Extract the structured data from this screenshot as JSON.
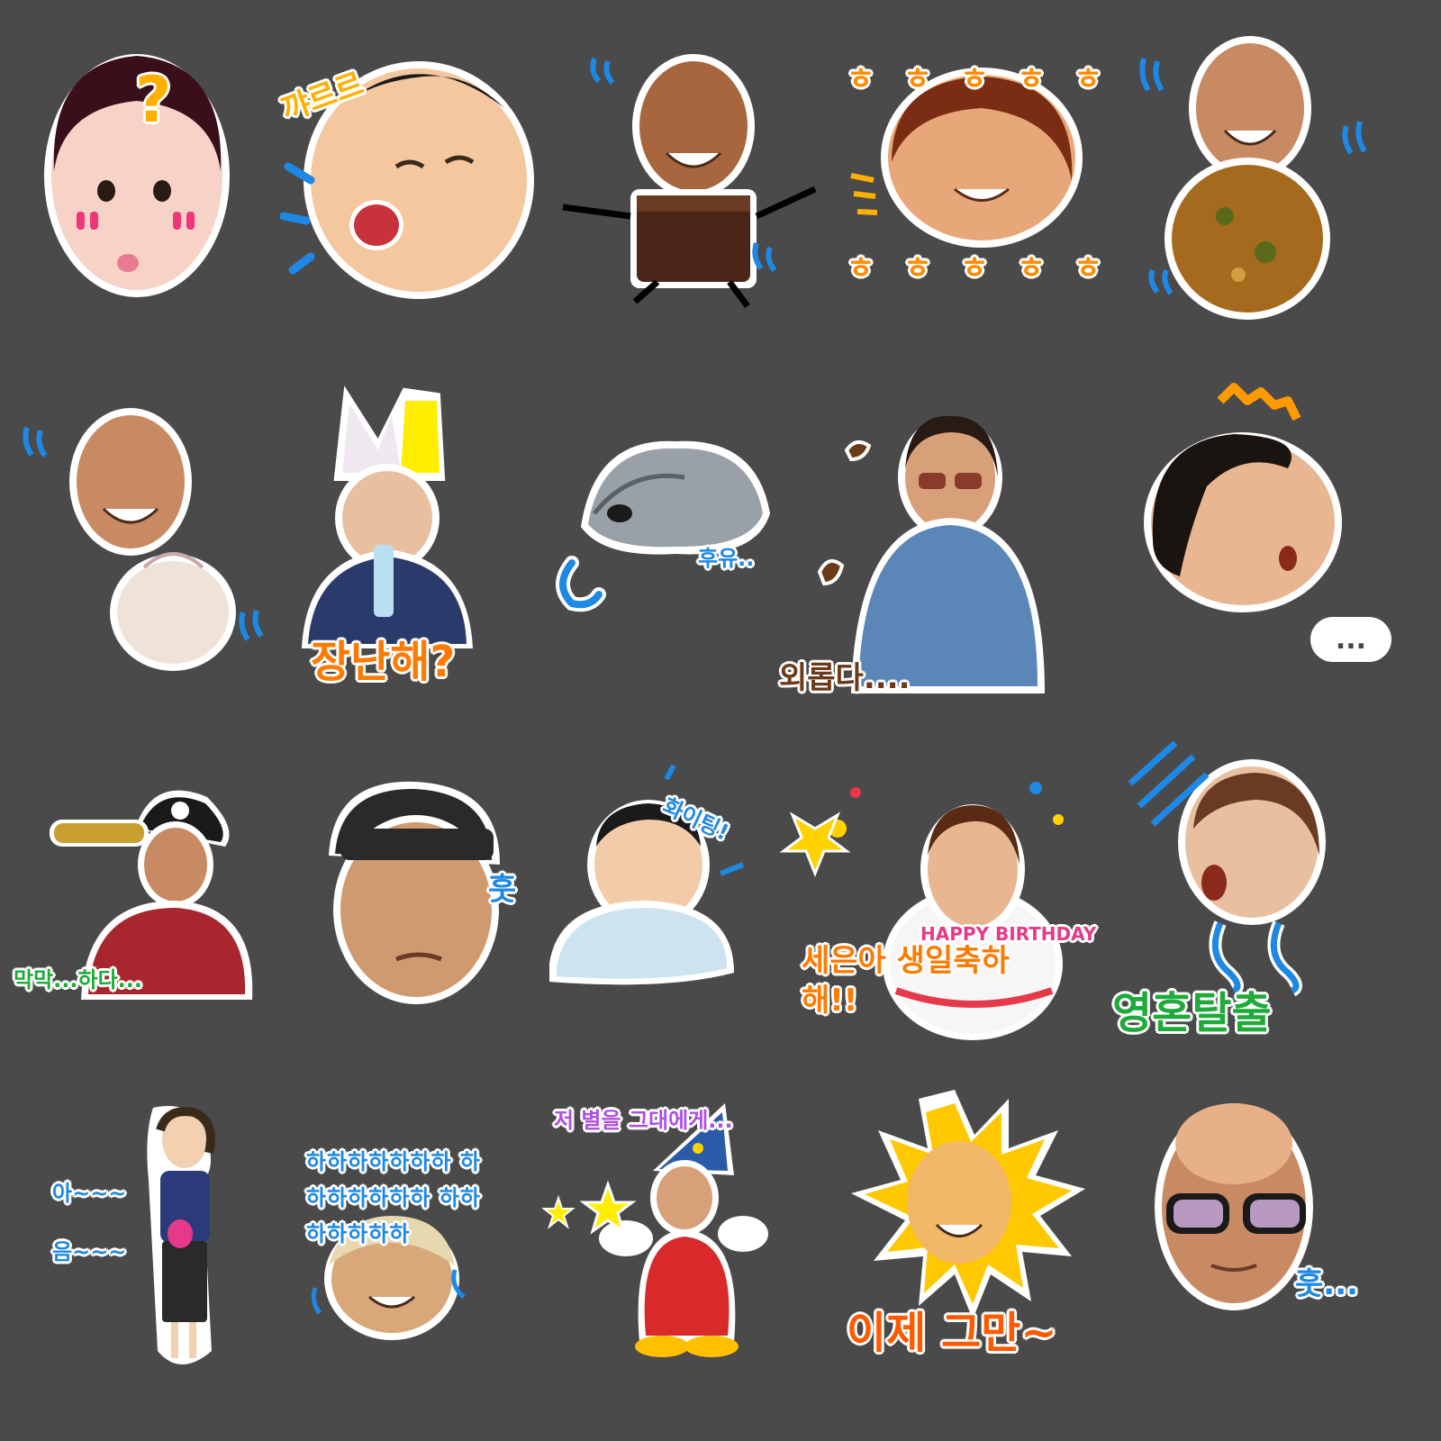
{
  "stickers": [
    {
      "caption": "",
      "deco": "?"
    },
    {
      "caption": "꺄르르",
      "deco": ""
    },
    {
      "caption": "",
      "deco": ""
    },
    {
      "caption": "ㅎ ㅎ ㅎ ㅎ ㅎ",
      "deco": "ㅎ ㅎ ㅎ ㅎ ㅎ"
    },
    {
      "caption": "",
      "deco": ""
    },
    {
      "caption": "",
      "deco": ""
    },
    {
      "caption": "장난해?",
      "deco": ""
    },
    {
      "caption": "후유..",
      "deco": ""
    },
    {
      "caption": "외롭다....",
      "deco": ""
    },
    {
      "caption": "",
      "deco": "..."
    },
    {
      "caption": "막막...하다...",
      "deco": ""
    },
    {
      "caption": "훗",
      "deco": ""
    },
    {
      "caption": "화이팅!",
      "deco": ""
    },
    {
      "caption": "세은아 생일축하해!!",
      "deco": "HAPPY BIRTHDAY"
    },
    {
      "caption": "영혼탈출",
      "deco": ""
    },
    {
      "caption": "아~~~",
      "deco": "음~~~"
    },
    {
      "caption": "하하하하하하하 하하하하하하하 하하하하하하하",
      "deco": ""
    },
    {
      "caption": "저 별을 그대에게...",
      "deco": ""
    },
    {
      "caption": "이제 그만~",
      "deco": ""
    },
    {
      "caption": "훗...",
      "deco": ""
    }
  ],
  "colors": {
    "background": "#4a4a4a",
    "orange": "#ff7a00",
    "blue": "#1e88e5",
    "green": "#1faa3a",
    "yellow": "#ffd200",
    "pink": "#e6398a",
    "purple": "#b04fe0",
    "brown": "#6b3a1a"
  }
}
